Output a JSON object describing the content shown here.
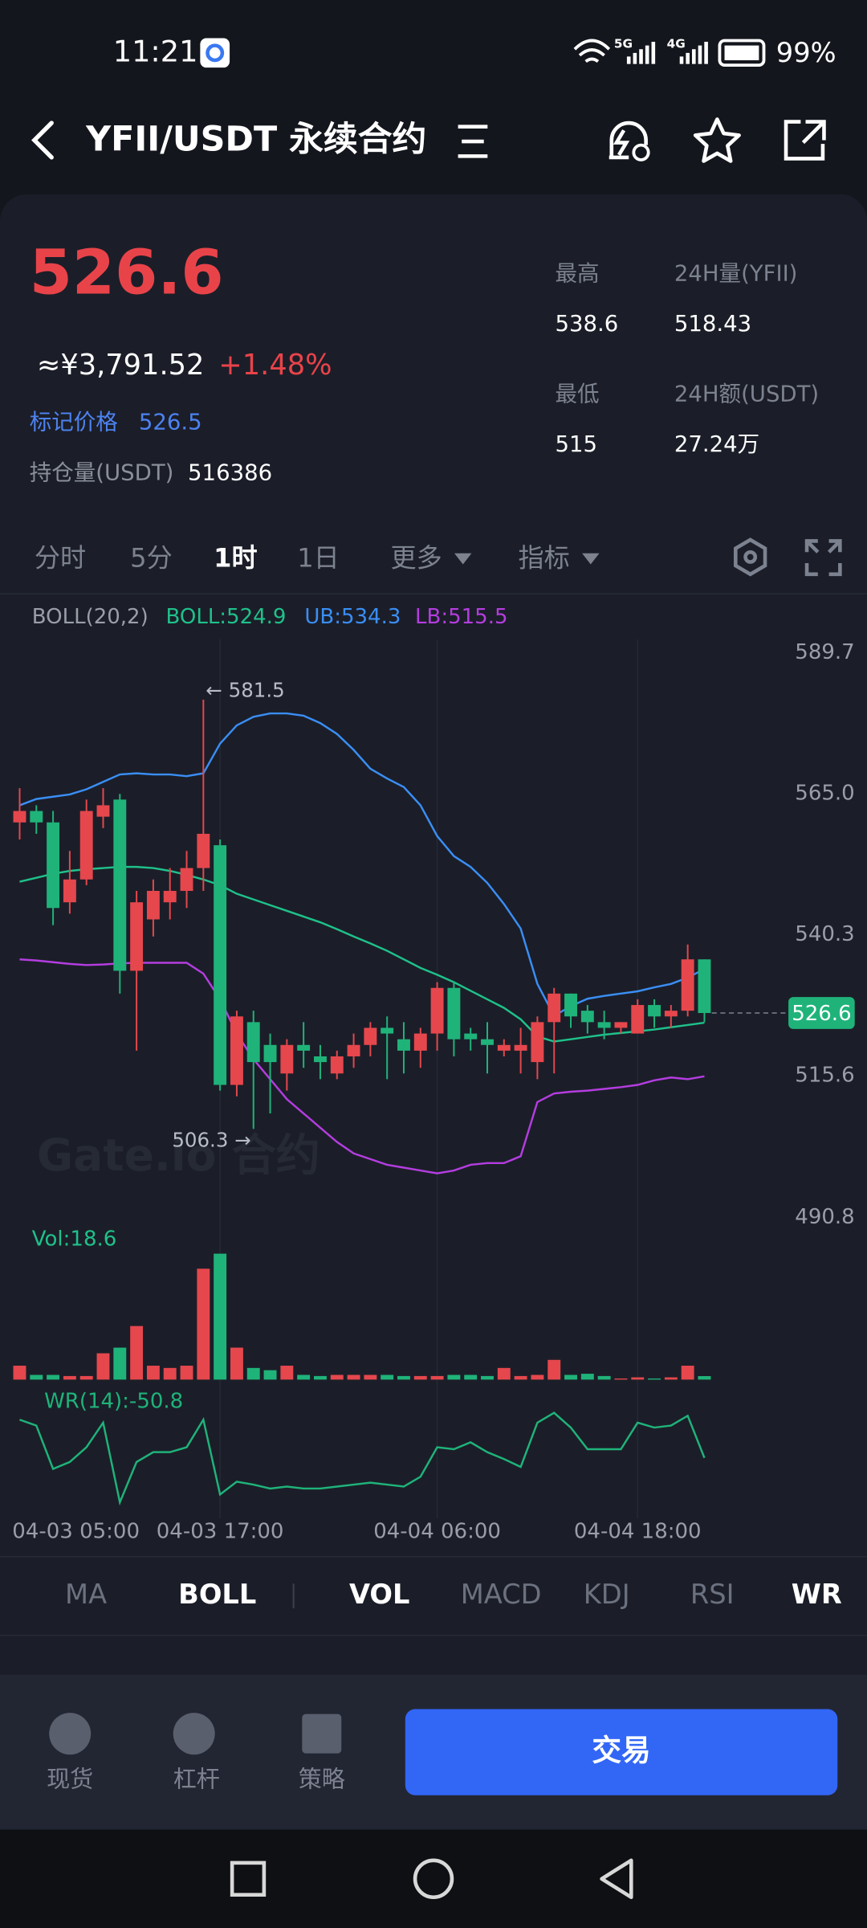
{
  "status_bar": {
    "time": "11:21",
    "network_labels": [
      "5G",
      "4G"
    ],
    "battery": "99%"
  },
  "header": {
    "title": "YFII/USDT 永续合约"
  },
  "ticker": {
    "price": "526.6",
    "cny": "≈¥3,791.52",
    "change": "+1.48%",
    "mark_label": "标记价格",
    "mark_price": "526.5",
    "oi_label": "持仓量(USDT)",
    "oi": "516386",
    "stats": [
      {
        "label": "最高",
        "value": "538.6"
      },
      {
        "label": "24H量(YFII)",
        "value": "518.43"
      },
      {
        "label": "最低",
        "value": "515"
      },
      {
        "label": "24H额(USDT)",
        "value": "27.24万"
      }
    ]
  },
  "intervals": [
    {
      "label": "分时",
      "active": false
    },
    {
      "label": "5分",
      "active": false
    },
    {
      "label": "1时",
      "active": true
    },
    {
      "label": "1日",
      "active": false
    },
    {
      "label": "更多",
      "active": false,
      "menu": true
    },
    {
      "label": "指标",
      "active": false,
      "menu": true
    }
  ],
  "indicator_label": "BOLL(20,2)",
  "watermark": "Gate.io 合约",
  "chart_data": [
    {
      "type": "candlestick",
      "up_color": "#e5474d",
      "down_color": "#1fb37a",
      "categories": [
        "04-03 05:00",
        null,
        null,
        null,
        null,
        null,
        null,
        null,
        null,
        null,
        null,
        null,
        "04-03 17:00",
        null,
        null,
        null,
        null,
        null,
        null,
        null,
        null,
        null,
        null,
        null,
        null,
        "04-04 06:00",
        null,
        null,
        null,
        null,
        null,
        null,
        null,
        null,
        null,
        null,
        null,
        "04-04 18:00",
        null,
        null,
        null,
        null
      ],
      "open": [
        560,
        562,
        560,
        546,
        550,
        561,
        564,
        534,
        543,
        546,
        548,
        552,
        556,
        514,
        525,
        521,
        516,
        521,
        519,
        516,
        519,
        521,
        524,
        522,
        520,
        523,
        531,
        523,
        522,
        520,
        520,
        518,
        525,
        530,
        527,
        525,
        524,
        523,
        528,
        526,
        527,
        536
      ],
      "high": [
        566,
        563,
        562,
        555,
        564,
        566,
        565,
        548,
        550,
        552,
        555,
        581.5,
        557,
        527,
        527,
        523,
        522,
        525,
        521,
        520,
        523,
        525,
        526,
        525,
        524,
        532,
        532,
        524,
        525,
        522,
        524,
        526,
        531,
        530,
        528,
        527,
        525,
        529,
        529,
        528,
        538.6,
        536
      ],
      "low": [
        557,
        558,
        542,
        544,
        549,
        559,
        530,
        520,
        540,
        543,
        545,
        548,
        513,
        512,
        506.3,
        509,
        513,
        517,
        515,
        515,
        517,
        519,
        515,
        516,
        517,
        520,
        519,
        520,
        516,
        519,
        516,
        515,
        516,
        524,
        523,
        522,
        523,
        523,
        524,
        524,
        526,
        525
      ],
      "close": [
        562,
        560,
        545,
        550,
        562,
        563,
        534,
        546,
        548,
        548,
        552,
        558,
        514,
        526,
        518,
        518,
        521,
        520,
        518,
        519,
        521,
        524,
        523,
        520,
        523,
        531,
        522,
        522,
        521,
        521,
        521,
        525,
        530,
        526,
        525,
        524,
        525,
        528,
        526,
        527,
        536,
        526.6
      ],
      "overlays": [
        {
          "name": "BOLL:524.9",
          "color": "#1fc18a",
          "values": [
            549.6,
            550.3,
            551.0,
            551.5,
            551.8,
            552.0,
            552.2,
            552.2,
            552.0,
            551.5,
            550.8,
            550.0,
            549.0,
            547.5,
            546.5,
            545.5,
            544.5,
            543.5,
            542.5,
            541.3,
            540.0,
            538.8,
            537.5,
            536.0,
            534.5,
            533.3,
            532.0,
            530.5,
            529.0,
            527.5,
            525.5,
            522.5,
            521.6,
            522.0,
            522.4,
            522.8,
            523.1,
            523.4,
            523.7,
            524.1,
            524.5,
            524.9
          ]
        },
        {
          "name": "UB:534.3",
          "color": "#3a8ef5",
          "values": [
            563.0,
            564.1,
            564.5,
            564.9,
            565.8,
            567.1,
            568.4,
            568.6,
            568.4,
            568.4,
            568.1,
            568.6,
            573.8,
            577.0,
            578.5,
            579.1,
            579.1,
            578.7,
            577.4,
            575.5,
            572.7,
            569.4,
            567.7,
            566.2,
            563.0,
            557.6,
            554.1,
            552.2,
            549.4,
            545.7,
            541.4,
            531.7,
            526.1,
            527.8,
            529.1,
            529.6,
            530.0,
            530.4,
            531.1,
            531.7,
            532.8,
            534.3
          ]
        },
        {
          "name": "LB:515.5",
          "color": "#b43de0",
          "values": [
            536.0,
            535.8,
            535.5,
            535.2,
            535.0,
            535.1,
            535.3,
            535.4,
            535.4,
            535.4,
            535.4,
            533.5,
            529.0,
            523.0,
            518.5,
            515.0,
            511.5,
            509.0,
            506.5,
            504.0,
            502.0,
            501.0,
            500.0,
            499.5,
            499.0,
            498.5,
            499.0,
            500.0,
            500.3,
            500.3,
            501.5,
            511.0,
            512.5,
            512.8,
            513.0,
            513.3,
            513.6,
            514.0,
            514.8,
            515.3,
            515.0,
            515.5
          ]
        }
      ],
      "ylim": [
        490.8,
        589.7
      ],
      "yticks": [
        589.7,
        {
          "value": 565,
          "label": "565.0"
        },
        540.3,
        515.6,
        490.8
      ],
      "annotations": {
        "max_label": "← 581.5",
        "min_label": "506.3 →"
      }
    },
    {
      "type": "bar",
      "title": "Vol:18.6",
      "ylim": [
        0,
        700
      ],
      "values": [
        74,
        25,
        25,
        19,
        19,
        140,
        170,
        285,
        74,
        62,
        74,
        590,
        670,
        170,
        62,
        50,
        74,
        25,
        19,
        25,
        25,
        25,
        25,
        19,
        19,
        19,
        25,
        25,
        19,
        62,
        19,
        25,
        105,
        25,
        31,
        19,
        6,
        12,
        6,
        12,
        74,
        18.6
      ]
    },
    {
      "type": "line",
      "title": "WR(14):-50.8",
      "color": "#1fb37a",
      "ylim": [
        -100,
        0
      ],
      "values": [
        -12,
        -18,
        -62,
        -55,
        -40,
        -15,
        -96,
        -55,
        -45,
        -45,
        -40,
        -12,
        -88,
        -75,
        -78,
        -82,
        -80,
        -82,
        -82,
        -80,
        -78,
        -76,
        -78,
        -80,
        -70,
        -40,
        -42,
        -35,
        -45,
        -52,
        -60,
        -15,
        -5,
        -20,
        -42,
        -42,
        -42,
        -15,
        -20,
        -18,
        -8,
        -50.8
      ]
    }
  ],
  "indicator_tabs": [
    {
      "label": "MA",
      "active": false
    },
    {
      "label": "BOLL",
      "active": true
    },
    {
      "label": "VOL",
      "active": true
    },
    {
      "label": "MACD",
      "active": false
    },
    {
      "label": "KDJ",
      "active": false
    },
    {
      "label": "RSI",
      "active": false
    },
    {
      "label": "WR",
      "active": true
    }
  ],
  "bottom_nav": {
    "items": [
      "现货",
      "杠杆",
      "策略"
    ],
    "trade_button": "交易"
  }
}
